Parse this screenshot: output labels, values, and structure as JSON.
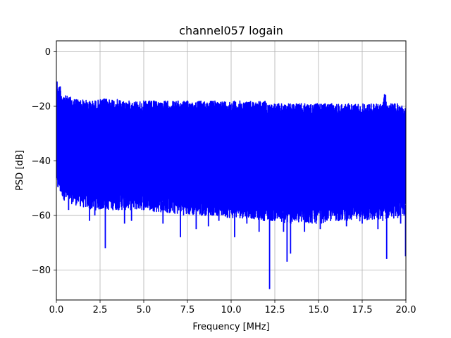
{
  "chart_data": {
    "type": "line",
    "title": "channel057 logain",
    "xlabel": "Frequency [MHz]",
    "ylabel": "PSD [dB]",
    "xlim": [
      0,
      20
    ],
    "ylim": [
      -91,
      4
    ],
    "xticks": [
      0,
      2.5,
      5,
      7.5,
      10,
      12.5,
      15,
      17.5,
      20
    ],
    "xtick_labels": [
      "0.0",
      "2.5",
      "5.0",
      "7.5",
      "10.0",
      "12.5",
      "15.0",
      "17.5",
      "20.0"
    ],
    "yticks": [
      0,
      -20,
      -40,
      -60,
      -80
    ],
    "ytick_labels": [
      "0",
      "−20",
      "−40",
      "−60",
      "−80"
    ],
    "grid": true,
    "series": [
      {
        "color": "#0000ff",
        "envelope": {
          "x": [
            0.0,
            0.05,
            0.1,
            0.2,
            0.3,
            0.5,
            1.0,
            2.0,
            3.0,
            4.0,
            5.0,
            6.0,
            7.5,
            9.0,
            10.0,
            11.0,
            12.0,
            12.2,
            12.5,
            13.0,
            13.25,
            14.0,
            15.0,
            16.0,
            17.0,
            18.0,
            18.6,
            18.8,
            19.0,
            19.5,
            20.0
          ],
          "upper": [
            -12,
            -10,
            -14,
            -11,
            -15,
            -16,
            -17,
            -18,
            -17,
            -18,
            -18,
            -18,
            -18,
            -18,
            -18,
            -18,
            -18,
            -19,
            -19,
            -19,
            -19,
            -19,
            -19,
            -19,
            -19,
            -19,
            -19,
            -15,
            -19,
            -19,
            -20
          ],
          "lower": [
            -48,
            -53,
            -50,
            -52,
            -53,
            -55,
            -56,
            -58,
            -58,
            -58,
            -58,
            -59,
            -60,
            -60,
            -61,
            -61,
            -62,
            -62,
            -62,
            -63,
            -63,
            -63,
            -63,
            -62,
            -62,
            -62,
            -62,
            -62,
            -61,
            -61,
            -60
          ]
        },
        "dips": [
          {
            "x": 0.7,
            "y": -58
          },
          {
            "x": 1.9,
            "y": -62
          },
          {
            "x": 2.2,
            "y": -60
          },
          {
            "x": 2.8,
            "y": -72
          },
          {
            "x": 3.9,
            "y": -63
          },
          {
            "x": 4.3,
            "y": -62
          },
          {
            "x": 6.1,
            "y": -63
          },
          {
            "x": 7.1,
            "y": -68
          },
          {
            "x": 8.0,
            "y": -65
          },
          {
            "x": 8.7,
            "y": -64
          },
          {
            "x": 9.3,
            "y": -62
          },
          {
            "x": 10.2,
            "y": -68
          },
          {
            "x": 10.9,
            "y": -63
          },
          {
            "x": 11.6,
            "y": -66
          },
          {
            "x": 12.2,
            "y": -87
          },
          {
            "x": 13.0,
            "y": -66
          },
          {
            "x": 13.2,
            "y": -77
          },
          {
            "x": 13.4,
            "y": -74
          },
          {
            "x": 14.2,
            "y": -66
          },
          {
            "x": 15.1,
            "y": -65
          },
          {
            "x": 16.6,
            "y": -64
          },
          {
            "x": 17.5,
            "y": -63
          },
          {
            "x": 18.4,
            "y": -65
          },
          {
            "x": 18.9,
            "y": -76
          },
          {
            "x": 19.7,
            "y": -63
          },
          {
            "x": 19.98,
            "y": -75
          }
        ]
      }
    ]
  }
}
